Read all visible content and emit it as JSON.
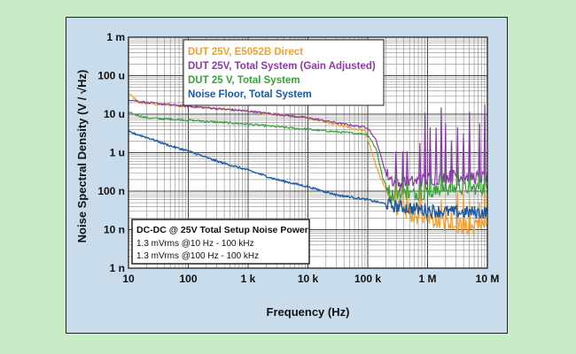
{
  "chart_data": {
    "type": "line",
    "title": "",
    "xlabel": "Frequency (Hz)",
    "ylabel": "Noise Spectral Density (V / √Hz)",
    "xscale": "log",
    "yscale": "log",
    "xlim": [
      10,
      10000000
    ],
    "ylim": [
      1e-09,
      0.001
    ],
    "grid": true,
    "x_tick_labels": [
      "10",
      "100",
      "1 k",
      "10 k",
      "100 k",
      "1 M",
      "10 M"
    ],
    "y_tick_labels": [
      "1 m",
      "100 u",
      "10 u",
      "1 u",
      "100 n",
      "10 n",
      "1 n"
    ],
    "legend_placement": "top-center",
    "series": [
      {
        "name": "DUT 25V, E5052B Direct",
        "color": "#f0a030",
        "x": [
          10,
          15,
          30,
          100,
          1000,
          10000,
          60000,
          90000,
          150000,
          250000,
          400000,
          800000,
          2000000,
          5000000,
          10000000
        ],
        "y": [
          3.5e-05,
          2e-05,
          1.8e-05,
          1.6e-05,
          1.2e-05,
          8e-06,
          4.2e-06,
          3.8e-06,
          3e-07,
          5e-08,
          3e-08,
          2e-08,
          1.5e-08,
          1.1e-08,
          1.4e-08
        ]
      },
      {
        "name": "DUT 25V, Total System (Gain Adjusted)",
        "color": "#8a3aa8",
        "x": [
          10,
          20,
          100,
          1000,
          10000,
          60000,
          100000,
          140000,
          200000,
          300000,
          1000000,
          3000000,
          10000000
        ],
        "y": [
          2.4e-05,
          2e-05,
          1.6e-05,
          1.2e-05,
          8e-06,
          5e-06,
          4.5e-06,
          2e-06,
          3e-07,
          1.5e-07,
          2e-07,
          2.5e-07,
          2.2e-07
        ]
      },
      {
        "name": "DUT 25 V, Total System",
        "color": "#3aa03a",
        "x": [
          10,
          20,
          100,
          1000,
          10000,
          60000,
          100000,
          140000,
          180000,
          250000,
          1000000,
          3000000,
          10000000
        ],
        "y": [
          1.1e-05,
          8e-06,
          7e-06,
          5.5e-06,
          4e-06,
          3.2e-06,
          3e-06,
          1.2e-06,
          2e-07,
          8e-08,
          9e-08,
          1.2e-07,
          1.2e-07
        ]
      },
      {
        "name": "Noise Floor, Total System",
        "color": "#1a5aa8",
        "x": [
          10,
          20,
          50,
          100,
          300,
          1000,
          3000,
          10000,
          30000,
          100000,
          300000,
          1000000,
          3000000,
          10000000
        ],
        "y": [
          3.5e-06,
          2.5e-06,
          1.5e-06,
          1.1e-06,
          6e-07,
          3.5e-07,
          2e-07,
          1.3e-07,
          8e-08,
          6e-08,
          4e-08,
          3.2e-08,
          2.8e-08,
          2.8e-08
        ]
      }
    ],
    "annotation": {
      "title": "DC-DC @ 25V Total Setup Noise Power",
      "lines": [
        "1.3 mVrms @10 Hz - 100 kHz",
        "1.3 mVrms @100 Hz - 100 kHz"
      ]
    }
  }
}
